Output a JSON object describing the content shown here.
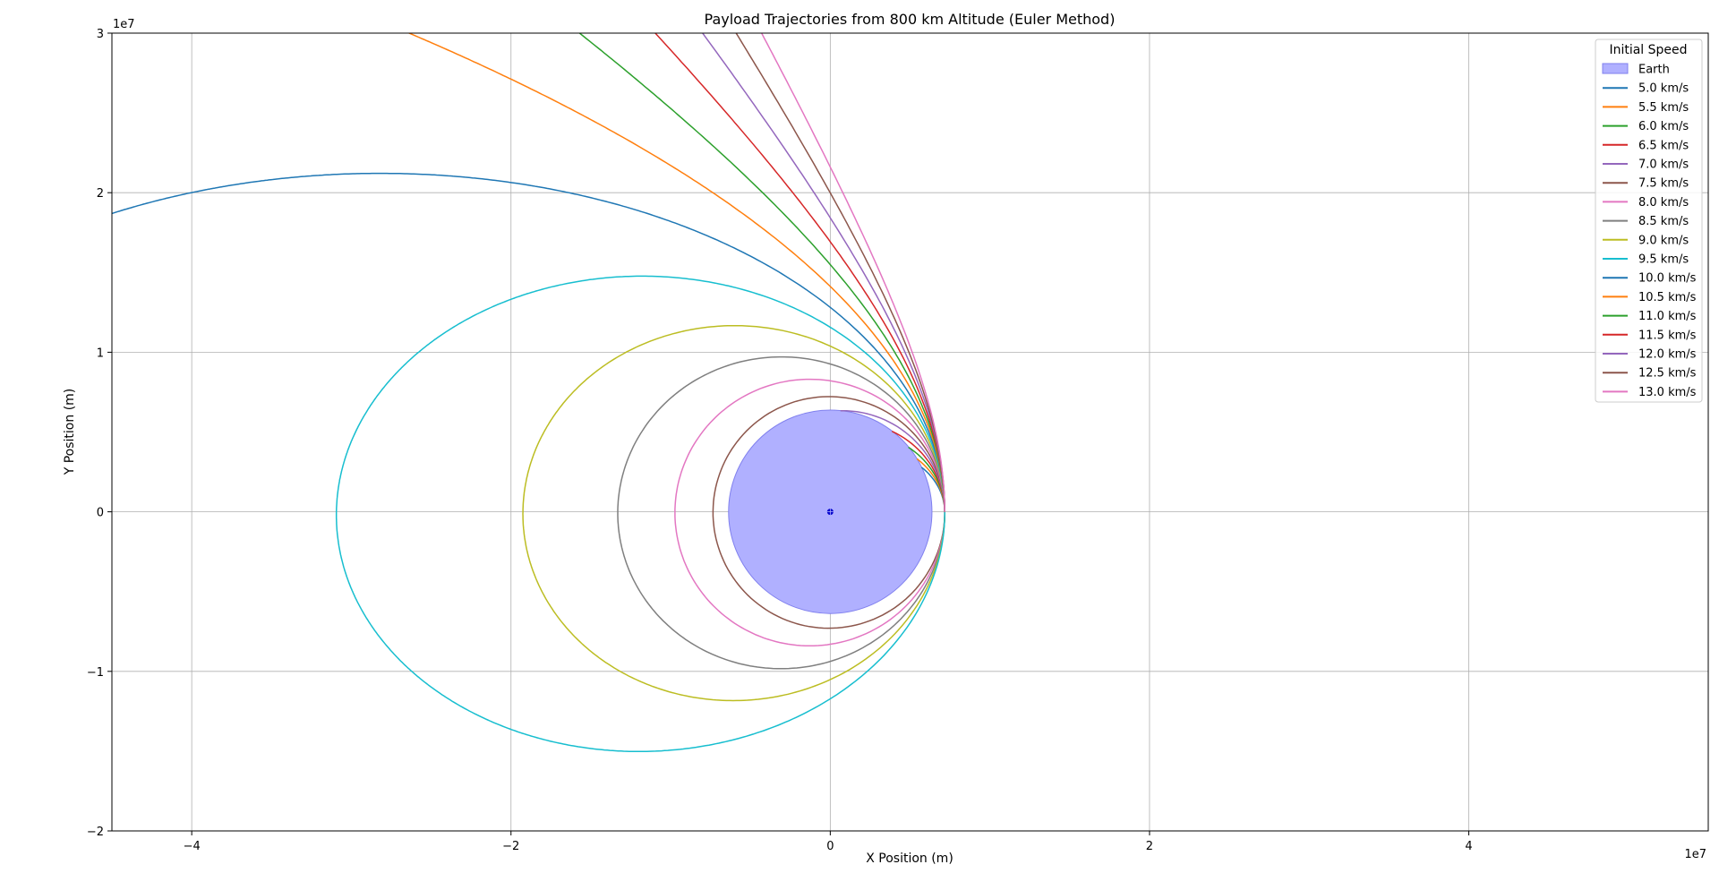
{
  "chart_data": {
    "type": "line",
    "title": "Payload Trajectories from 800 km Altitude (Euler Method)",
    "xlabel": "X Position (m)",
    "ylabel": "Y Position (m)",
    "x_offset_text": "1e7",
    "y_offset_text": "1e7",
    "xlim": [
      -45000000.0,
      55000000.0
    ],
    "ylim": [
      -20000000.0,
      30000000.0
    ],
    "x_ticks": [
      {
        "value": -40000000.0,
        "label": "−4"
      },
      {
        "value": -20000000.0,
        "label": "−2"
      },
      {
        "value": 0,
        "label": "0"
      },
      {
        "value": 20000000.0,
        "label": "2"
      },
      {
        "value": 40000000.0,
        "label": "4"
      }
    ],
    "y_ticks": [
      {
        "value": -20000000.0,
        "label": "−2"
      },
      {
        "value": -10000000.0,
        "label": "−1"
      },
      {
        "value": 0,
        "label": "0"
      },
      {
        "value": 10000000.0,
        "label": "1"
      },
      {
        "value": 20000000.0,
        "label": "2"
      },
      {
        "value": 30000000.0,
        "label": "3"
      }
    ],
    "grid": true,
    "legend_title": "Initial Speed",
    "legend_position": "top-right",
    "earth": {
      "name": "Earth",
      "radius_m": 6371000,
      "color": "#b0b0ff",
      "edge": "#8080ee"
    },
    "start_radius_m": 7171000,
    "series": [
      {
        "name": "5.0 km/s",
        "speed_kms": 5.0,
        "color": "#1f77b4"
      },
      {
        "name": "5.5 km/s",
        "speed_kms": 5.5,
        "color": "#ff7f0e"
      },
      {
        "name": "6.0 km/s",
        "speed_kms": 6.0,
        "color": "#2ca02c"
      },
      {
        "name": "6.5 km/s",
        "speed_kms": 6.5,
        "color": "#d62728"
      },
      {
        "name": "7.0 km/s",
        "speed_kms": 7.0,
        "color": "#9467bd"
      },
      {
        "name": "7.5 km/s",
        "speed_kms": 7.5,
        "color": "#8c564b"
      },
      {
        "name": "8.0 km/s",
        "speed_kms": 8.0,
        "color": "#e377c2"
      },
      {
        "name": "8.5 km/s",
        "speed_kms": 8.5,
        "color": "#7f7f7f"
      },
      {
        "name": "9.0 km/s",
        "speed_kms": 9.0,
        "color": "#bcbd22"
      },
      {
        "name": "9.5 km/s",
        "speed_kms": 9.5,
        "color": "#17becf"
      },
      {
        "name": "10.0 km/s",
        "speed_kms": 10.0,
        "color": "#1f77b4"
      },
      {
        "name": "10.5 km/s",
        "speed_kms": 10.5,
        "color": "#ff7f0e"
      },
      {
        "name": "11.0 km/s",
        "speed_kms": 11.0,
        "color": "#2ca02c"
      },
      {
        "name": "11.5 km/s",
        "speed_kms": 11.5,
        "color": "#d62728"
      },
      {
        "name": "12.0 km/s",
        "speed_kms": 12.0,
        "color": "#9467bd"
      },
      {
        "name": "12.5 km/s",
        "speed_kms": 12.5,
        "color": "#8c564b"
      },
      {
        "name": "13.0 km/s",
        "speed_kms": 13.0,
        "color": "#e377c2"
      }
    ]
  }
}
